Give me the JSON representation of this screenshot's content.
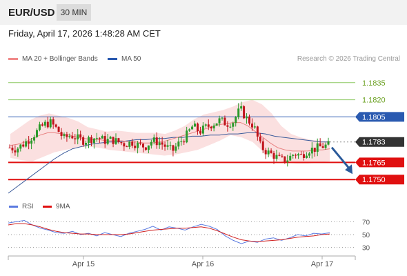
{
  "header": {
    "symbol": "EUR/USD",
    "timeframe": "30 MIN",
    "datetime": "Friday, April 17, 2026 1:48:28 AM CET"
  },
  "legend": {
    "ma20_label": "MA 20 + Bollinger Bands",
    "ma50_label": "MA 50",
    "credit": "Research © 2026 Trading Central"
  },
  "rsi_legend": {
    "rsi_label": "RSI",
    "ma9_label": "9MA"
  },
  "colors": {
    "up": "#2a9a2a",
    "down": "#c0141c",
    "ma20": "#e88080",
    "bollinger_fill": "#fbe0e0",
    "ma50": "#3a5a9a",
    "resistance_green": "#8cc860",
    "blue_line": "#2a5ab0",
    "red_line": "#e01010",
    "current": "#333333",
    "rsi": "#5a7ae0",
    "ma9": "#d02020"
  },
  "chart_data": [
    {
      "type": "candlestick",
      "title": "EUR/USD 30 MIN",
      "x_ticks": [
        "Apr 15",
        "Apr 16",
        "Apr 17"
      ],
      "price_levels": [
        {
          "value": 1.1835,
          "kind": "green"
        },
        {
          "value": 1.182,
          "kind": "green"
        },
        {
          "value": 1.1805,
          "kind": "blue"
        },
        {
          "value": 1.1783,
          "kind": "current"
        },
        {
          "value": 1.1765,
          "kind": "red"
        },
        {
          "value": 1.175,
          "kind": "red"
        }
      ],
      "level_labels": [
        "1.1835",
        "1.1820",
        "1.1805",
        "1.1783",
        "1.1765",
        "1.1750"
      ],
      "ylim": [
        1.1735,
        1.185
      ],
      "close_path": [
        1.1778,
        1.1777,
        1.1781,
        1.1786,
        1.1792,
        1.1798,
        1.18,
        1.1794,
        1.1786,
        1.1789,
        1.1786,
        1.1784,
        1.1786,
        1.1787,
        1.1784,
        1.1785,
        1.1783,
        1.1781,
        1.1783,
        1.178,
        1.1779,
        1.1784,
        1.1783,
        1.1779,
        1.1775,
        1.1782,
        1.1788,
        1.1797,
        1.1792,
        1.1796,
        1.1799,
        1.1802,
        1.1799,
        1.1801,
        1.1812,
        1.1803,
        1.1797,
        1.1779,
        1.1774,
        1.1771,
        1.1767,
        1.1768,
        1.1773,
        1.1771,
        1.1776,
        1.1777,
        1.1779,
        1.178
      ],
      "ma20": [
        1.178,
        1.1781,
        1.1783,
        1.1786,
        1.1789,
        1.1791,
        1.1791,
        1.179,
        1.1789,
        1.1787,
        1.1786,
        1.1785,
        1.1785,
        1.1784,
        1.1784,
        1.1784,
        1.1783,
        1.1783,
        1.1782,
        1.1782,
        1.1783,
        1.1784,
        1.1786,
        1.1788,
        1.179,
        1.1792,
        1.1794,
        1.1796,
        1.1798,
        1.1799,
        1.18,
        1.18,
        1.1797,
        1.1792,
        1.1787,
        1.1782,
        1.1778,
        1.1776,
        1.1775,
        1.1775,
        1.1775,
        1.1776,
        1.1776,
        1.1777
      ],
      "ma50": [
        1.1738,
        1.1744,
        1.175,
        1.1756,
        1.1762,
        1.1768,
        1.1773,
        1.1777,
        1.1779,
        1.1781,
        1.1782,
        1.1783,
        1.1783,
        1.1784,
        1.1785,
        1.1785,
        1.1786,
        1.1786,
        1.1787,
        1.1787,
        1.1788,
        1.1788,
        1.1789,
        1.1789,
        1.179,
        1.179,
        1.1791,
        1.1791,
        1.179,
        1.1788,
        1.1787,
        1.1786,
        1.1785,
        1.1784,
        1.1783,
        1.1783
      ],
      "bb_upper": [
        1.179,
        1.1796,
        1.1802,
        1.1806,
        1.1808,
        1.1806,
        1.1804,
        1.1801,
        1.1796,
        1.1794,
        1.1792,
        1.1793,
        1.1792,
        1.1791,
        1.1791,
        1.1791,
        1.179,
        1.1793,
        1.1797,
        1.1803,
        1.1807,
        1.1809,
        1.1811,
        1.1814,
        1.1818,
        1.182,
        1.1816,
        1.1808,
        1.1797,
        1.179,
        1.1787,
        1.1785,
        1.1784,
        1.1784
      ],
      "bb_lower": [
        1.1769,
        1.1767,
        1.1766,
        1.177,
        1.1774,
        1.1776,
        1.1778,
        1.1779,
        1.1778,
        1.1776,
        1.1775,
        1.1774,
        1.1773,
        1.1772,
        1.1771,
        1.1772,
        1.1774,
        1.1776,
        1.178,
        1.1784,
        1.1789,
        1.1787,
        1.1783,
        1.1774,
        1.1768,
        1.1765,
        1.1764,
        1.1764,
        1.1765,
        1.1766
      ],
      "forecast": {
        "from": 1.1783,
        "to": 1.175,
        "direction": "down"
      }
    },
    {
      "type": "line",
      "title": "RSI",
      "x_ticks": [
        "Apr 15",
        "Apr 16",
        "Apr 17"
      ],
      "y_ticks": [
        "70",
        "50",
        "30"
      ],
      "ylim": [
        20,
        80
      ],
      "series": [
        {
          "name": "RSI",
          "values": [
            68,
            70,
            72,
            65,
            60,
            57,
            53,
            52,
            55,
            50,
            52,
            48,
            53,
            50,
            47,
            52,
            55,
            58,
            63,
            57,
            62,
            60,
            57,
            62,
            66,
            63,
            58,
            48,
            41,
            36,
            40,
            38,
            43,
            45,
            41,
            45,
            50,
            48,
            52,
            51,
            53
          ]
        },
        {
          "name": "9MA",
          "values": [
            65,
            67,
            67,
            65,
            62,
            58,
            55,
            53,
            52,
            51,
            51,
            50,
            50,
            50,
            50,
            51,
            53,
            55,
            57,
            58,
            59,
            60,
            60,
            61,
            62,
            60,
            56,
            51,
            46,
            42,
            40,
            39,
            40,
            41,
            42,
            44,
            46,
            47,
            48,
            50,
            51
          ]
        }
      ]
    }
  ]
}
